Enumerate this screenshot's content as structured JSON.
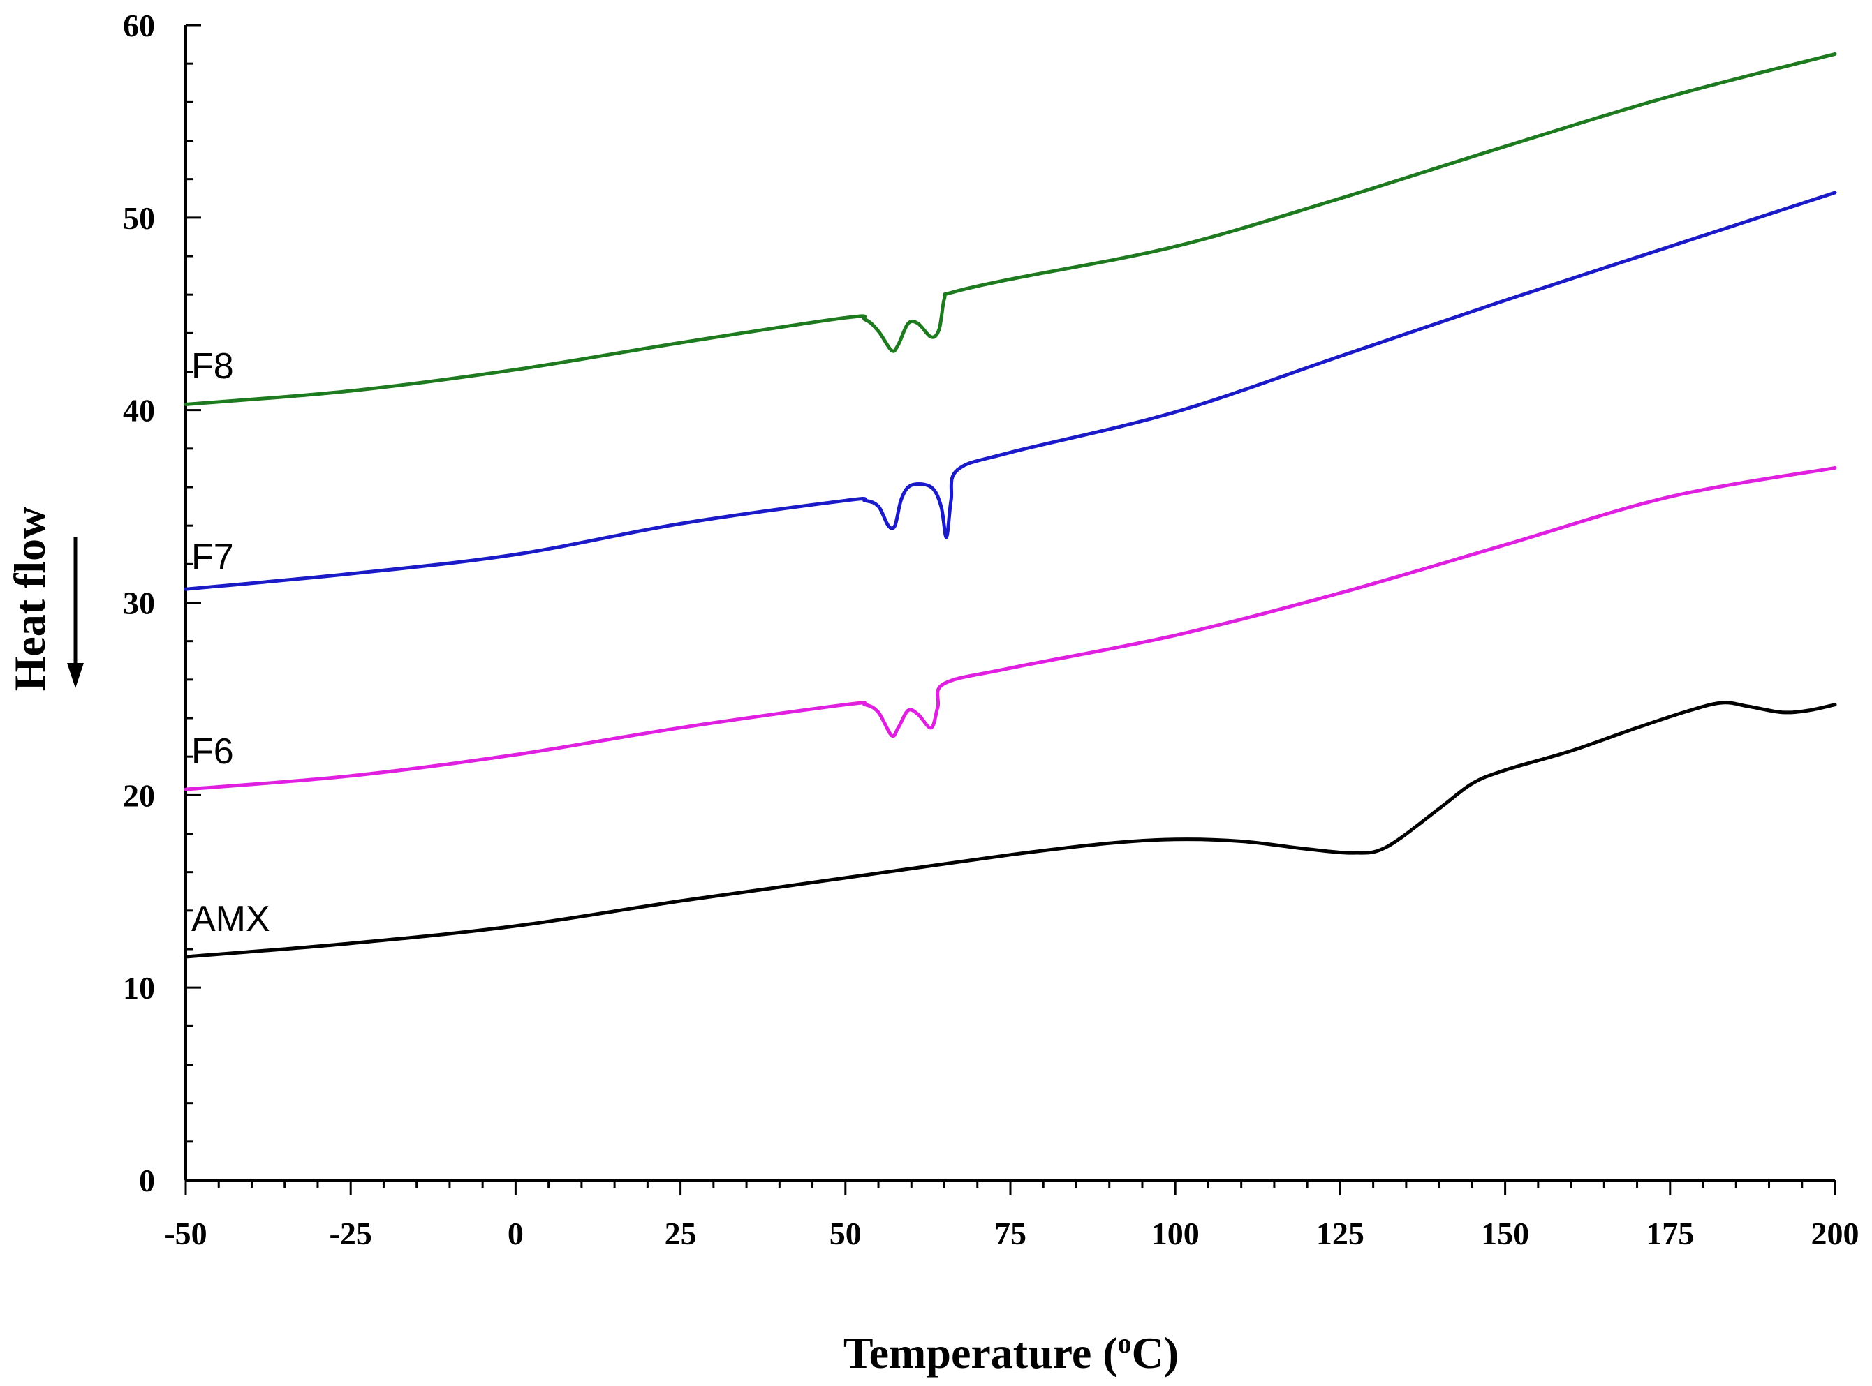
{
  "chart_data": {
    "type": "line",
    "title": "",
    "xlabel": "Temperature (",
    "xlabel_sup": "o",
    "xlabel_suffix": "C)",
    "ylabel": "Heat flow",
    "ylabel_arrow": "down",
    "xlim": [
      -50,
      200
    ],
    "ylim": [
      0,
      60
    ],
    "x_ticks": [
      -50,
      -25,
      0,
      25,
      50,
      75,
      100,
      125,
      150,
      175,
      200
    ],
    "y_ticks": [
      0,
      10,
      20,
      30,
      40,
      50,
      60
    ],
    "x_tick_labels": [
      "-50",
      "-25",
      "0",
      "25",
      "50",
      "75",
      "100",
      "125",
      "150",
      "175",
      "200"
    ],
    "y_tick_labels": [
      "0",
      "10",
      "20",
      "30",
      "40",
      "50",
      "60"
    ],
    "grid": false,
    "series": [
      {
        "name": "AMX",
        "color": "#000000",
        "points": [
          [
            -50,
            11.6
          ],
          [
            -25,
            12.3
          ],
          [
            0,
            13.2
          ],
          [
            25,
            14.5
          ],
          [
            50,
            15.7
          ],
          [
            75,
            16.9
          ],
          [
            90,
            17.5
          ],
          [
            100,
            17.7
          ],
          [
            110,
            17.6
          ],
          [
            120,
            17.2
          ],
          [
            127,
            17.0
          ],
          [
            132,
            17.3
          ],
          [
            140,
            19.3
          ],
          [
            145,
            20.6
          ],
          [
            150,
            21.3
          ],
          [
            160,
            22.3
          ],
          [
            170,
            23.5
          ],
          [
            178,
            24.4
          ],
          [
            183,
            24.8
          ],
          [
            187,
            24.6
          ],
          [
            192,
            24.3
          ],
          [
            196,
            24.4
          ],
          [
            200,
            24.7
          ]
        ],
        "label_x": -50,
        "label_y": 13.6
      },
      {
        "name": "F6",
        "color": "#e020e0",
        "points": [
          [
            -50,
            20.3
          ],
          [
            -25,
            21.0
          ],
          [
            0,
            22.1
          ],
          [
            25,
            23.5
          ],
          [
            50,
            24.7
          ],
          [
            53,
            24.7
          ],
          [
            55,
            24.3
          ],
          [
            57,
            23.1
          ],
          [
            58,
            23.5
          ],
          [
            59.5,
            24.4
          ],
          [
            61,
            24.2
          ],
          [
            63,
            23.5
          ],
          [
            64,
            24.6
          ],
          [
            65,
            25.8
          ],
          [
            75,
            26.6
          ],
          [
            100,
            28.3
          ],
          [
            125,
            30.5
          ],
          [
            150,
            33.0
          ],
          [
            175,
            35.5
          ],
          [
            200,
            37.0
          ]
        ],
        "label_x": -50,
        "label_y": 22.3
      },
      {
        "name": "F7",
        "color": "#1a1ac8",
        "points": [
          [
            -50,
            30.7
          ],
          [
            -25,
            31.5
          ],
          [
            0,
            32.5
          ],
          [
            25,
            34.1
          ],
          [
            50,
            35.3
          ],
          [
            53,
            35.3
          ],
          [
            55,
            35.0
          ],
          [
            56.5,
            34.0
          ],
          [
            57.5,
            34.0
          ],
          [
            58.5,
            35.4
          ],
          [
            60,
            36.1
          ],
          [
            63,
            36.0
          ],
          [
            64.5,
            35.0
          ],
          [
            65.3,
            33.4
          ],
          [
            66,
            35.3
          ],
          [
            67,
            36.9
          ],
          [
            75,
            37.8
          ],
          [
            100,
            39.9
          ],
          [
            125,
            42.8
          ],
          [
            150,
            45.7
          ],
          [
            175,
            48.5
          ],
          [
            200,
            51.3
          ]
        ],
        "label_x": -50,
        "label_y": 32.4
      },
      {
        "name": "F8",
        "color": "#1e7a1e",
        "points": [
          [
            -50,
            40.3
          ],
          [
            -25,
            41.0
          ],
          [
            0,
            42.1
          ],
          [
            25,
            43.5
          ],
          [
            50,
            44.8
          ],
          [
            53,
            44.7
          ],
          [
            55,
            44.1
          ],
          [
            57,
            43.1
          ],
          [
            58,
            43.4
          ],
          [
            59.5,
            44.5
          ],
          [
            61,
            44.5
          ],
          [
            63,
            43.8
          ],
          [
            64.2,
            44.2
          ],
          [
            65,
            45.8
          ],
          [
            66,
            46.1
          ],
          [
            75,
            46.8
          ],
          [
            100,
            48.5
          ],
          [
            125,
            51.0
          ],
          [
            150,
            53.7
          ],
          [
            175,
            56.3
          ],
          [
            200,
            58.5
          ]
        ],
        "label_x": -50,
        "label_y": 42.3
      }
    ]
  }
}
